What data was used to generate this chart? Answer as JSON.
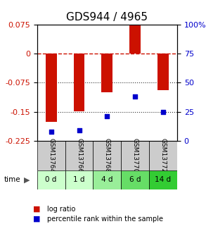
{
  "title": "GDS944 / 4965",
  "samples": [
    "GSM13764",
    "GSM13766",
    "GSM13768",
    "GSM13770",
    "GSM13772"
  ],
  "timepoints": [
    "0 d",
    "1 d",
    "4 d",
    "6 d",
    "14 d"
  ],
  "log_ratio": [
    -0.175,
    -0.148,
    -0.1,
    0.073,
    -0.095
  ],
  "percentile": [
    8,
    9,
    21,
    38,
    25
  ],
  "ylim_left": [
    -0.225,
    0.075
  ],
  "ylim_right": [
    0,
    100
  ],
  "yticks_left": [
    0.075,
    0,
    -0.075,
    -0.15,
    -0.225
  ],
  "yticks_right": [
    100,
    75,
    50,
    25,
    0
  ],
  "bar_color": "#cc1100",
  "dot_color": "#0000cc",
  "zero_line_color": "#cc1100",
  "dotted_line_color": "#333333",
  "bg_plot": "#ffffff",
  "bg_gsm": "#cccccc",
  "bg_time_colors": [
    "#ccffcc",
    "#ccffcc",
    "#99ee99",
    "#66dd66",
    "#33cc33"
  ],
  "time_label": "time",
  "legend_items": [
    "log ratio",
    "percentile rank within the sample"
  ],
  "bar_width": 0.4,
  "title_fontsize": 11,
  "tick_fontsize": 8,
  "label_fontsize": 8
}
